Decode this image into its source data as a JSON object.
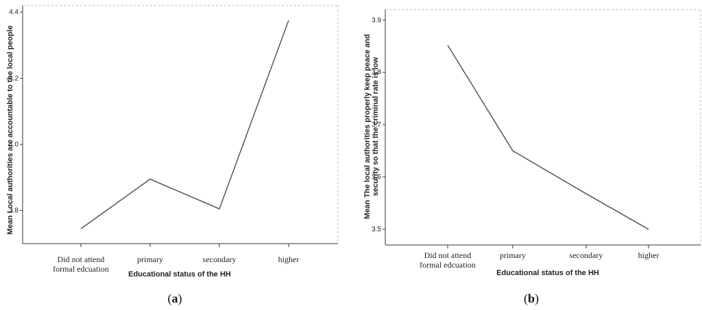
{
  "chart_data": [
    {
      "type": "line",
      "panel_label": "(a)",
      "panel_letter": "a",
      "categories": [
        "Did  not attend|formal edcuation",
        "primary",
        "secondary",
        "higher"
      ],
      "values": [
        3.745,
        3.895,
        3.805,
        4.375
      ],
      "ylim": [
        3.7,
        4.42
      ],
      "yticks": [
        "3.8",
        "4.0",
        "4.2",
        "4.4"
      ],
      "ytick_values": [
        3.8,
        4.0,
        4.2,
        4.4
      ],
      "xlabel": "Educational status of the HH",
      "ylabel": [
        "Mean Local authorities are accountable to the local people"
      ],
      "grid": false,
      "line_color": "#555555"
    },
    {
      "type": "line",
      "panel_label": "(b)",
      "panel_letter": "b",
      "categories": [
        "Did  not attend|formal edcuation",
        "primary",
        "secondary",
        "higher"
      ],
      "values": [
        3.852,
        3.65,
        3.568,
        3.5
      ],
      "ylim": [
        3.47,
        3.92
      ],
      "yticks": [
        "3.5",
        "3.6",
        "3.7",
        "3.8",
        "3.9"
      ],
      "ytick_values": [
        3.5,
        3.6,
        3.7,
        3.8,
        3.9
      ],
      "xlabel": "Educational status of the HH",
      "ylabel": [
        "Mean The local authorities properly keep  peace and",
        "security so that the criminal rate is low"
      ],
      "grid": false,
      "line_color": "#555555"
    }
  ]
}
